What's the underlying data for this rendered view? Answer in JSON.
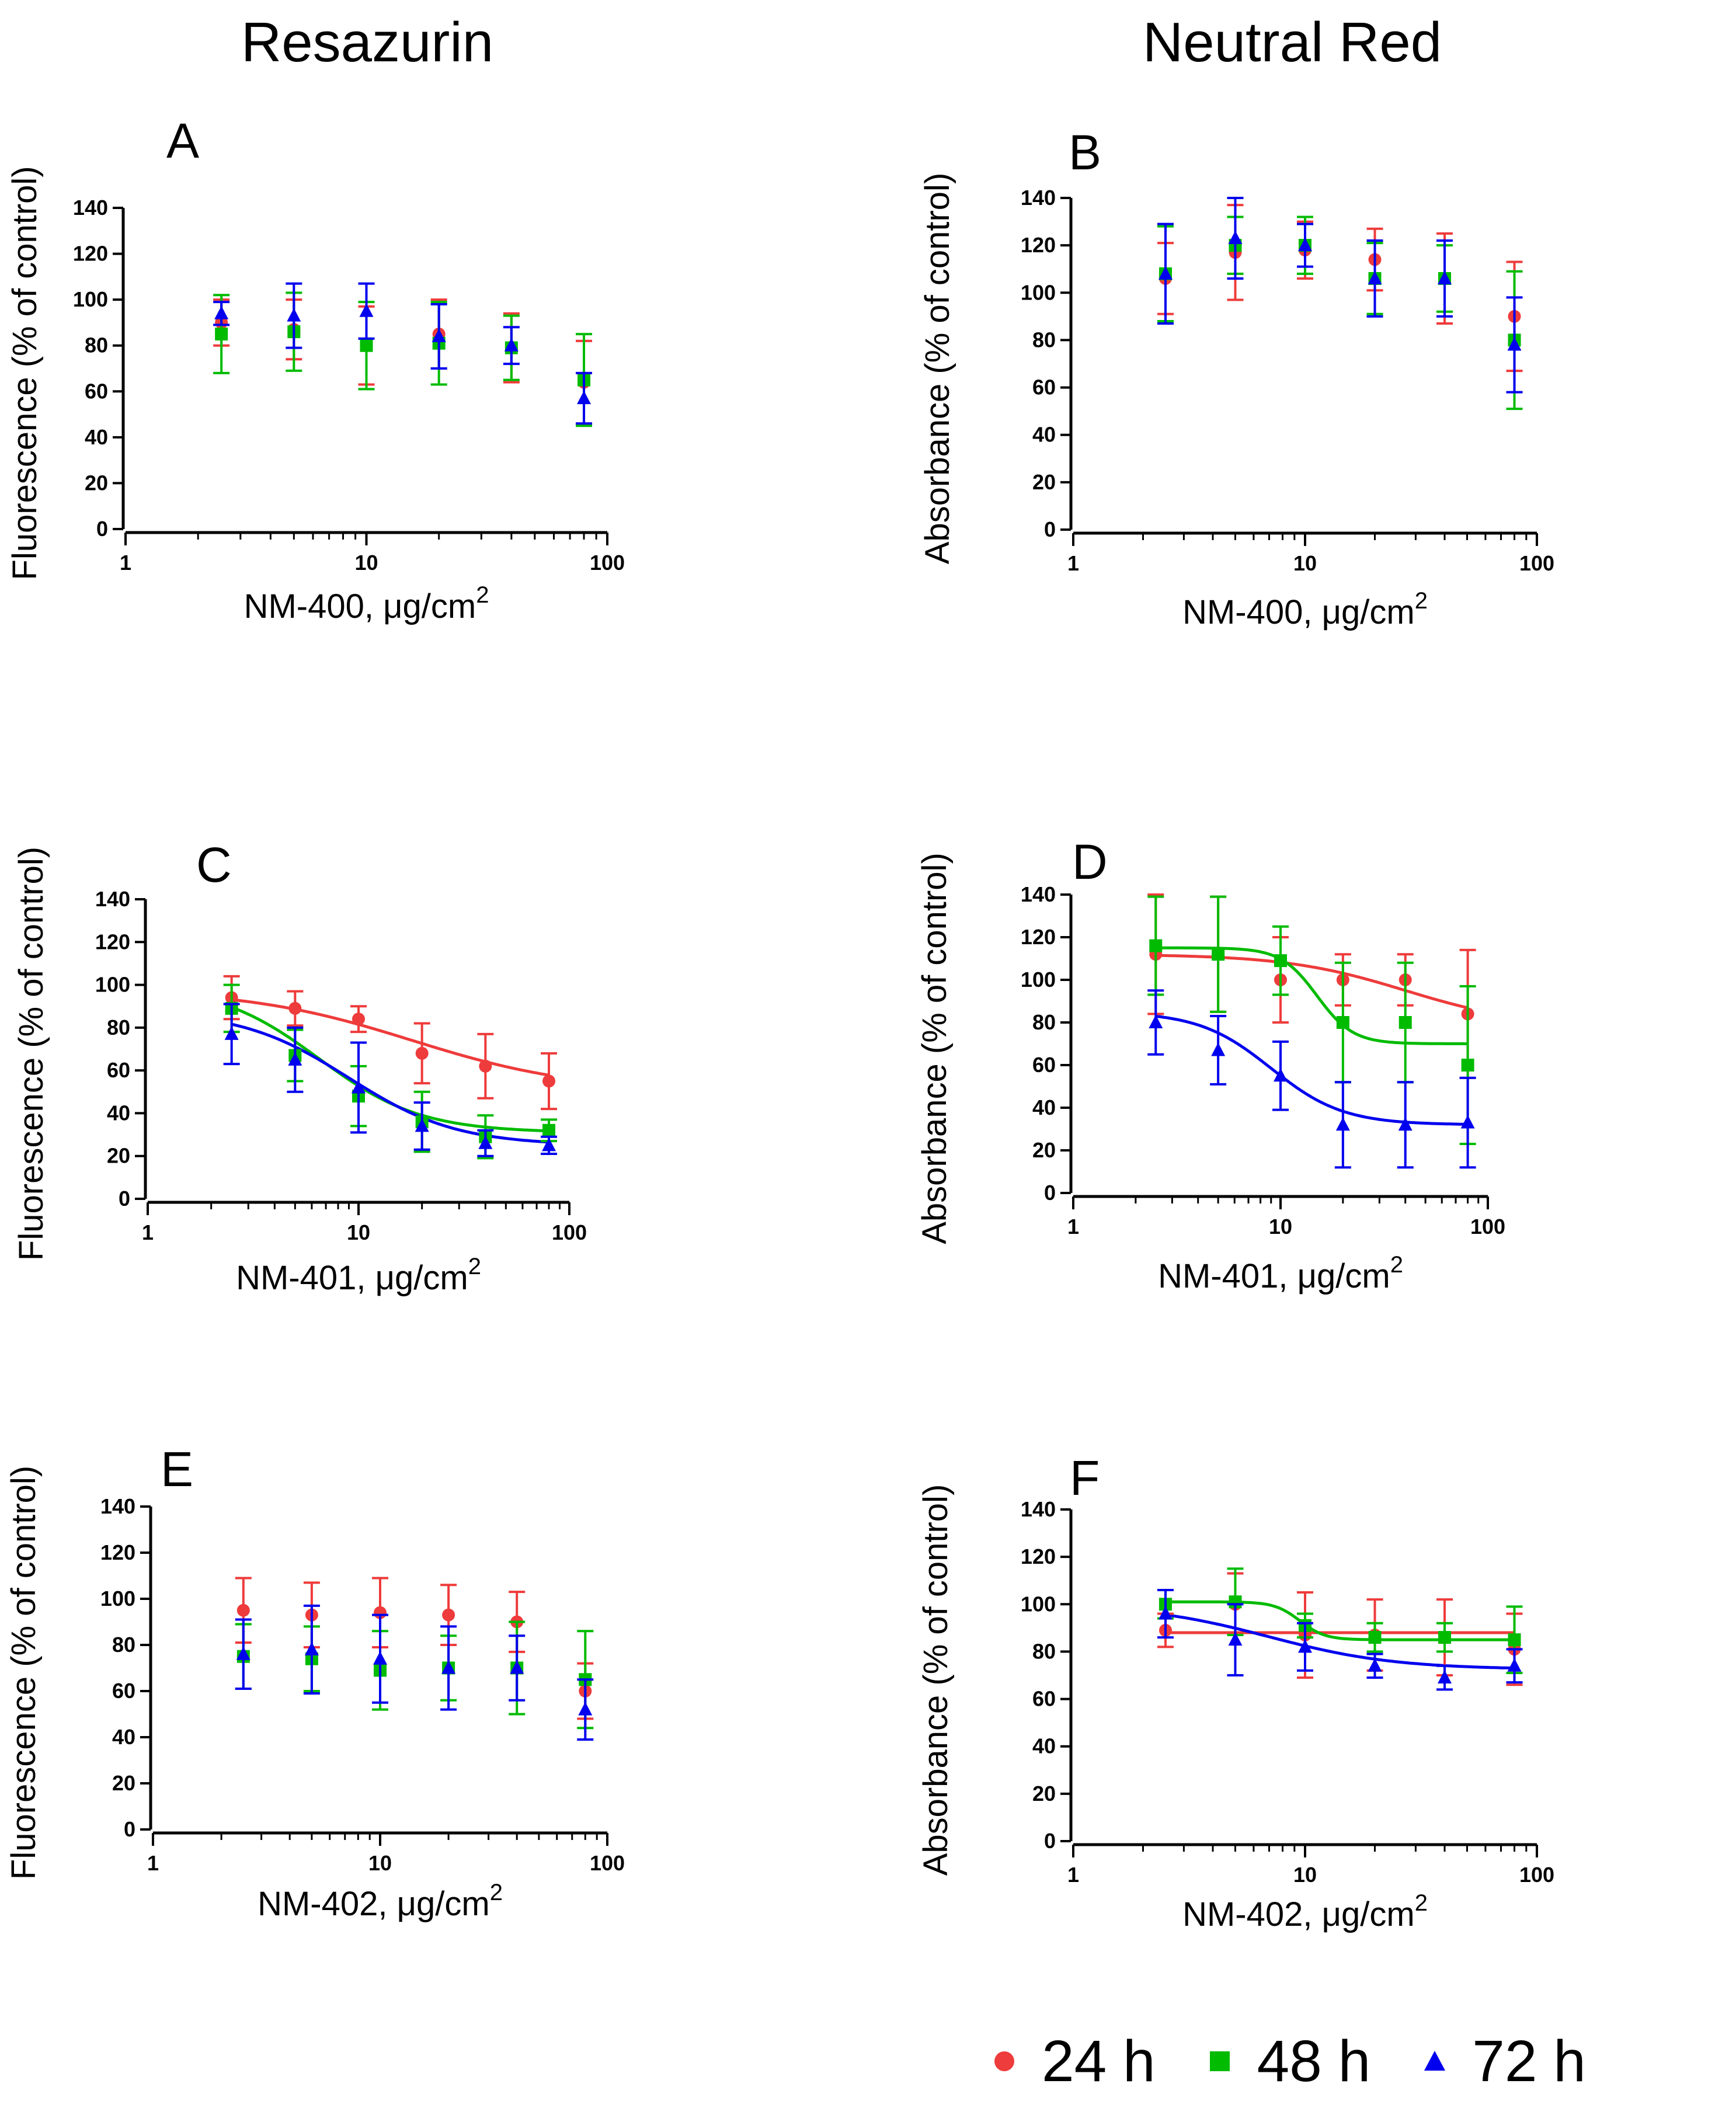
{
  "column_titles": {
    "left": "Resazurin",
    "right": "Neutral Red"
  },
  "legend": [
    {
      "label": "24 h",
      "color": "#ee3b3b",
      "marker": "circle"
    },
    {
      "label": "48 h",
      "color": "#00bb00",
      "marker": "square"
    },
    {
      "label": "72 h",
      "color": "#0000ee",
      "marker": "triangle"
    }
  ],
  "chart_data": [
    {
      "panel": "A",
      "type": "scatter",
      "xscale": "log",
      "xlabel_main": "NM-400, μg/cm",
      "xlabel_sup": "2",
      "ylabel": "Fluorescence (% of control)",
      "xlim": [
        1,
        100
      ],
      "ylim": [
        0,
        140
      ],
      "xticks": [
        1,
        10,
        100
      ],
      "yticks": [
        0,
        20,
        40,
        60,
        80,
        100,
        120,
        140
      ],
      "x": [
        2.5,
        5,
        10,
        20,
        40,
        80
      ],
      "series": [
        {
          "name": "24 h",
          "values": [
            90,
            87,
            80,
            85,
            79,
            64
          ],
          "err": [
            10,
            13,
            17,
            15,
            15,
            18
          ],
          "fit": null
        },
        {
          "name": "48 h",
          "values": [
            85,
            86,
            80,
            81,
            79,
            65
          ],
          "err": [
            17,
            17,
            19,
            18,
            14,
            20
          ],
          "fit": null
        },
        {
          "name": "72 h",
          "values": [
            94,
            93,
            95,
            84,
            80,
            57
          ],
          "err": [
            5,
            14,
            12,
            14,
            8,
            11
          ],
          "fit": null
        }
      ]
    },
    {
      "panel": "B",
      "type": "scatter",
      "xscale": "log",
      "xlabel_main": "NM-400, μg/cm",
      "xlabel_sup": "2",
      "ylabel": "Absorbance (% of control)",
      "xlim": [
        1,
        100
      ],
      "ylim": [
        0,
        140
      ],
      "xticks": [
        1,
        10,
        100
      ],
      "yticks": [
        0,
        20,
        40,
        60,
        80,
        100,
        120,
        140
      ],
      "x": [
        2.5,
        5,
        10,
        20,
        40,
        80
      ],
      "series": [
        {
          "name": "24 h",
          "values": [
            106,
            117,
            118,
            114,
            106,
            90
          ],
          "err": [
            15,
            20,
            12,
            13,
            19,
            23
          ],
          "fit": null
        },
        {
          "name": "48 h",
          "values": [
            108,
            120,
            120,
            106,
            106,
            80
          ],
          "err": [
            20,
            12,
            12,
            15,
            14,
            29
          ],
          "fit": null
        },
        {
          "name": "72 h",
          "values": [
            108,
            123,
            120,
            106,
            106,
            78
          ],
          "err": [
            21,
            17,
            9,
            16,
            16,
            20
          ],
          "fit": null
        }
      ]
    },
    {
      "panel": "C",
      "type": "scatter",
      "xscale": "log",
      "xlabel_main": "NM-401, μg/cm",
      "xlabel_sup": "2",
      "ylabel": "Fluorescence (% of control)",
      "xlim": [
        1,
        100
      ],
      "ylim": [
        0,
        140
      ],
      "xticks": [
        1,
        10,
        100
      ],
      "yticks": [
        0,
        20,
        40,
        60,
        80,
        100,
        120,
        140
      ],
      "x": [
        2.5,
        5,
        10,
        20,
        40,
        80
      ],
      "series": [
        {
          "name": "24 h",
          "values": [
            94,
            89,
            84,
            68,
            62,
            55
          ],
          "err": [
            10,
            8,
            6,
            14,
            15,
            13
          ],
          "fit": {
            "bottom": 50,
            "top": 98,
            "ec50": 18,
            "hill": 1.1
          }
        },
        {
          "name": "48 h",
          "values": [
            89,
            67,
            48,
            36,
            29,
            32
          ],
          "err": [
            11,
            12,
            14,
            14,
            10,
            5
          ],
          "fit": {
            "bottom": 31,
            "top": 100,
            "ec50": 6.5,
            "hill": 1.8
          }
        },
        {
          "name": "72 h",
          "values": [
            77,
            65,
            52,
            34,
            26,
            25
          ],
          "err": [
            14,
            15,
            21,
            11,
            6,
            4
          ],
          "fit": {
            "bottom": 25,
            "top": 88,
            "ec50": 9,
            "hill": 1.7
          }
        }
      ]
    },
    {
      "panel": "D",
      "type": "scatter",
      "xscale": "log",
      "xlabel_main": "NM-401, μg/cm",
      "xlabel_sup": "2",
      "ylabel": "Absorbance (% of control)",
      "xlim": [
        1,
        100
      ],
      "ylim": [
        0,
        140
      ],
      "xticks": [
        1,
        10,
        100
      ],
      "yticks": [
        0,
        20,
        40,
        60,
        80,
        100,
        120,
        140
      ],
      "x": [
        2.5,
        5,
        10,
        20,
        40,
        80
      ],
      "series": [
        {
          "name": "24 h",
          "values": [
            112,
            112,
            100,
            100,
            100,
            84
          ],
          "err": [
            28,
            27,
            20,
            12,
            12,
            30
          ],
          "fit": {
            "bottom": 78,
            "top": 112,
            "ec50": 40,
            "hill": 1.5
          }
        },
        {
          "name": "48 h",
          "values": [
            116,
            112,
            109,
            80,
            80,
            60
          ],
          "err": [
            23,
            27,
            16,
            28,
            28,
            37
          ],
          "fit": {
            "bottom": 70,
            "top": 115,
            "ec50": 15,
            "hill": 5
          }
        },
        {
          "name": "72 h",
          "values": [
            80,
            67,
            55,
            32,
            32,
            33
          ],
          "err": [
            15,
            16,
            16,
            20,
            20,
            21
          ],
          "fit": {
            "bottom": 32,
            "top": 85,
            "ec50": 9,
            "hill": 2.5
          }
        }
      ]
    },
    {
      "panel": "E",
      "type": "scatter",
      "xscale": "log",
      "xlabel_main": "NM-402, μg/cm",
      "xlabel_sup": "2",
      "ylabel": "Fluorescence (% of control)",
      "xlim": [
        1,
        100
      ],
      "ylim": [
        0,
        140
      ],
      "xticks": [
        1,
        10,
        100
      ],
      "yticks": [
        0,
        20,
        40,
        60,
        80,
        100,
        120,
        140
      ],
      "x": [
        2.5,
        5,
        10,
        20,
        40,
        80
      ],
      "series": [
        {
          "name": "24 h",
          "values": [
            95,
            93,
            94,
            93,
            90,
            60
          ],
          "err": [
            14,
            14,
            15,
            13,
            13,
            12
          ],
          "fit": null
        },
        {
          "name": "48 h",
          "values": [
            75,
            74,
            69,
            70,
            70,
            65
          ],
          "err": [
            14,
            14,
            17,
            14,
            20,
            21
          ],
          "fit": null
        },
        {
          "name": "72 h",
          "values": [
            76,
            78,
            74,
            70,
            70,
            52
          ],
          "err": [
            15,
            19,
            19,
            18,
            14,
            13
          ],
          "fit": null
        }
      ]
    },
    {
      "panel": "F",
      "type": "scatter",
      "xscale": "log",
      "xlabel_main": "NM-402, μg/cm",
      "xlabel_sup": "2",
      "ylabel": "Absorbance (% of control)",
      "xlim": [
        1,
        100
      ],
      "ylim": [
        0,
        140
      ],
      "xticks": [
        1,
        10,
        100
      ],
      "yticks": [
        0,
        20,
        40,
        60,
        80,
        100,
        120,
        140
      ],
      "x": [
        2.5,
        5,
        10,
        20,
        40,
        80
      ],
      "series": [
        {
          "name": "24 h",
          "values": [
            89,
            100,
            87,
            87,
            86,
            81
          ],
          "err": [
            7,
            13,
            18,
            15,
            16,
            15
          ],
          "fit": {
            "bottom": 88,
            "top": 88,
            "ec50": 10,
            "hill": 1
          }
        },
        {
          "name": "48 h",
          "values": [
            100,
            101,
            91,
            86,
            86,
            85
          ],
          "err": [
            6,
            14,
            5,
            6,
            6,
            14
          ],
          "fit": {
            "bottom": 85,
            "top": 101,
            "ec50": 9.5,
            "hill": 8
          }
        },
        {
          "name": "72 h",
          "values": [
            96,
            85,
            82,
            74,
            69,
            74
          ],
          "err": [
            10,
            15,
            10,
            5,
            5,
            7
          ],
          "fit": {
            "bottom": 72.5,
            "top": 100,
            "ec50": 7,
            "hill": 1.6
          }
        }
      ]
    }
  ]
}
